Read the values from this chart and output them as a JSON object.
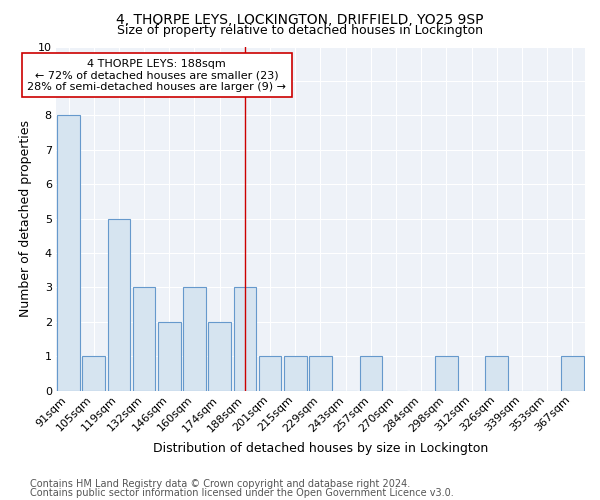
{
  "title1": "4, THORPE LEYS, LOCKINGTON, DRIFFIELD, YO25 9SP",
  "title2": "Size of property relative to detached houses in Lockington",
  "xlabel": "Distribution of detached houses by size in Lockington",
  "ylabel": "Number of detached properties",
  "categories": [
    "91sqm",
    "105sqm",
    "119sqm",
    "132sqm",
    "146sqm",
    "160sqm",
    "174sqm",
    "188sqm",
    "201sqm",
    "215sqm",
    "229sqm",
    "243sqm",
    "257sqm",
    "270sqm",
    "284sqm",
    "298sqm",
    "312sqm",
    "326sqm",
    "339sqm",
    "353sqm",
    "367sqm"
  ],
  "values": [
    8,
    1,
    5,
    3,
    2,
    3,
    2,
    3,
    1,
    1,
    1,
    0,
    1,
    0,
    0,
    1,
    0,
    1,
    0,
    0,
    1
  ],
  "bar_color": "#d6e4f0",
  "bar_edge_color": "#6699cc",
  "highlight_index": 7,
  "highlight_line_color": "#cc0000",
  "annotation_text": "4 THORPE LEYS: 188sqm\n← 72% of detached houses are smaller (23)\n28% of semi-detached houses are larger (9) →",
  "annotation_box_color": "#ffffff",
  "annotation_box_edge_color": "#cc0000",
  "ylim": [
    0,
    10
  ],
  "yticks": [
    0,
    1,
    2,
    3,
    4,
    5,
    6,
    7,
    8,
    9,
    10
  ],
  "footnote1": "Contains HM Land Registry data © Crown copyright and database right 2024.",
  "footnote2": "Contains public sector information licensed under the Open Government Licence v3.0.",
  "background_color": "#ffffff",
  "plot_bg_color": "#eef2f8",
  "grid_color": "#ffffff",
  "title1_fontsize": 10,
  "title2_fontsize": 9,
  "axis_label_fontsize": 9,
  "tick_fontsize": 8,
  "annotation_fontsize": 8,
  "footnote_fontsize": 7
}
